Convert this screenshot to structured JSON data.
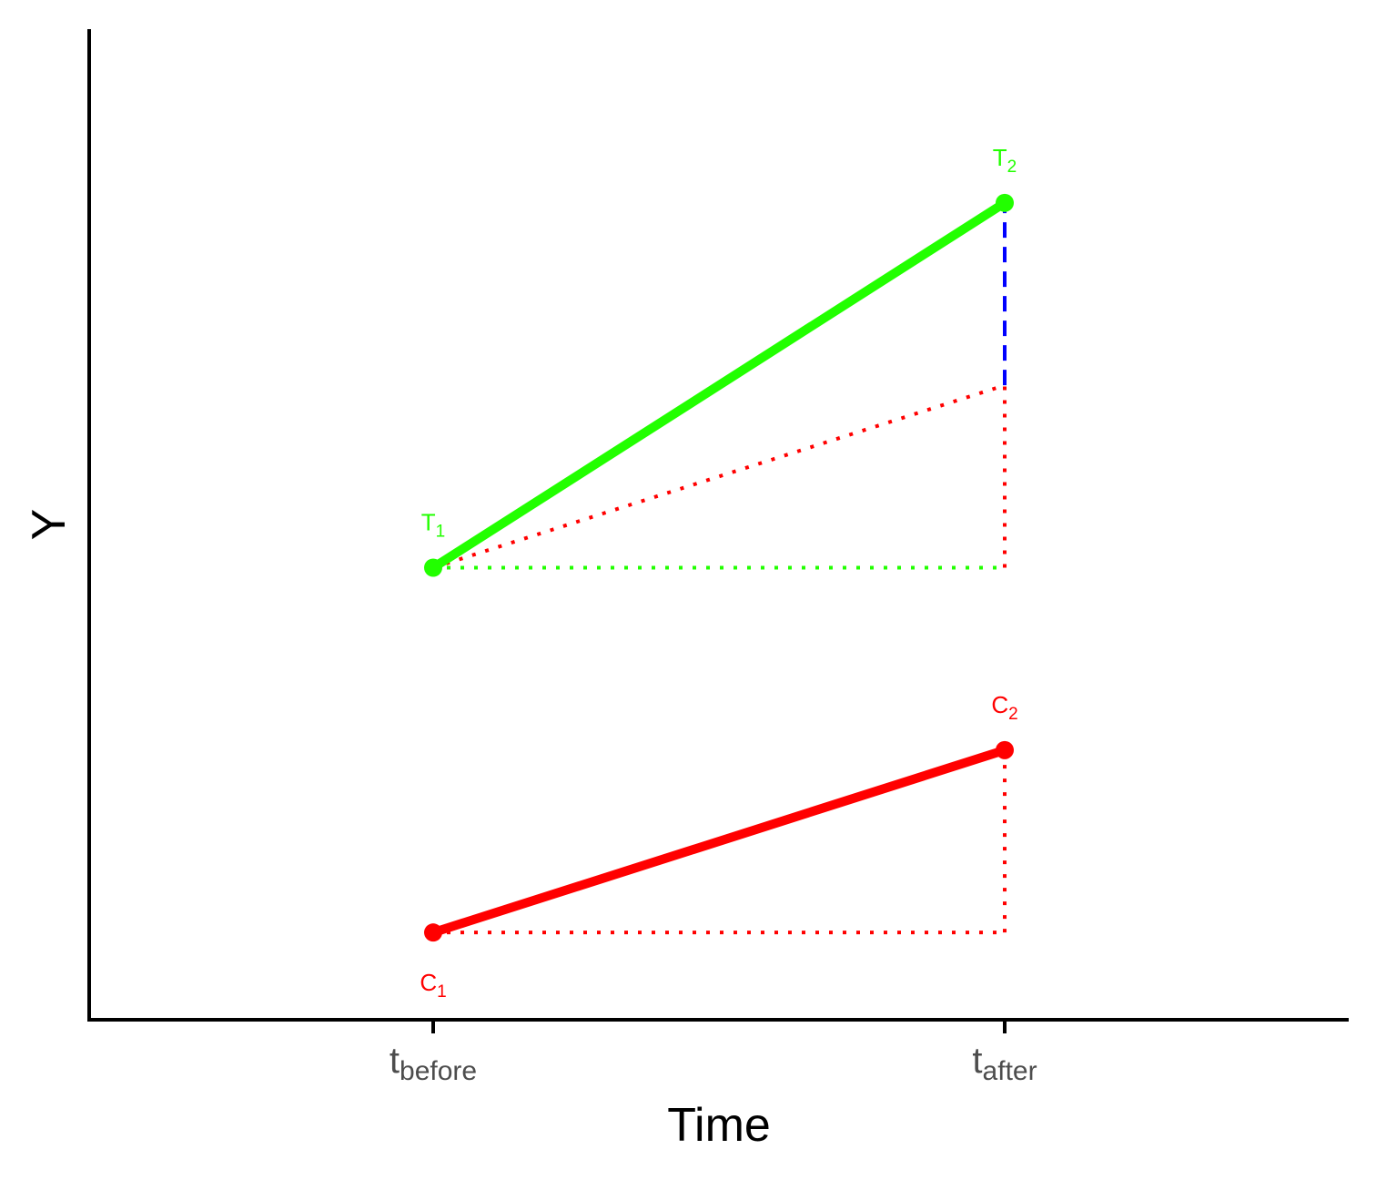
{
  "chart_data": {
    "type": "line",
    "title": "",
    "xlabel": "Time",
    "ylabel": "Y",
    "categories": [
      {
        "base": "t",
        "sub": "before"
      },
      {
        "base": "t",
        "sub": "after"
      }
    ],
    "ylim": [
      0,
      10
    ],
    "grid": false,
    "legend": "none",
    "series": [
      {
        "id": "treated",
        "color": "#22ff00",
        "values": [
          5.0,
          8.6
        ],
        "labels": [
          {
            "base": "T",
            "sub": "1",
            "position": "above"
          },
          {
            "base": "T",
            "sub": "2",
            "position": "above"
          }
        ]
      },
      {
        "id": "control",
        "color": "#ff0000",
        "values": [
          1.4,
          3.2
        ],
        "labels": [
          {
            "base": "C",
            "sub": "1",
            "position": "below"
          },
          {
            "base": "C",
            "sub": "2",
            "position": "above"
          }
        ]
      }
    ],
    "guides": [
      {
        "id": "treated-baseline",
        "style": "dotted",
        "color": "#22ff00",
        "from": [
          0,
          5.0
        ],
        "to": [
          1,
          5.0
        ]
      },
      {
        "id": "control-baseline",
        "style": "dotted",
        "color": "#ff0000",
        "from": [
          0,
          1.4
        ],
        "to": [
          1,
          1.4
        ]
      },
      {
        "id": "control-rise",
        "style": "dotted",
        "color": "#ff0000",
        "from": [
          1,
          1.4
        ],
        "to": [
          1,
          3.2
        ]
      },
      {
        "id": "counterfactual-trend",
        "style": "dotted",
        "color": "#ff0000",
        "from": [
          0,
          5.0
        ],
        "to": [
          1,
          6.8
        ]
      },
      {
        "id": "counterfactual-rise",
        "style": "dotted",
        "color": "#ff0000",
        "from": [
          1,
          5.0
        ],
        "to": [
          1,
          6.8
        ]
      },
      {
        "id": "treatment-effect",
        "style": "dashed",
        "color": "#0000ff",
        "from": [
          1,
          6.8
        ],
        "to": [
          1,
          8.6
        ]
      }
    ]
  }
}
